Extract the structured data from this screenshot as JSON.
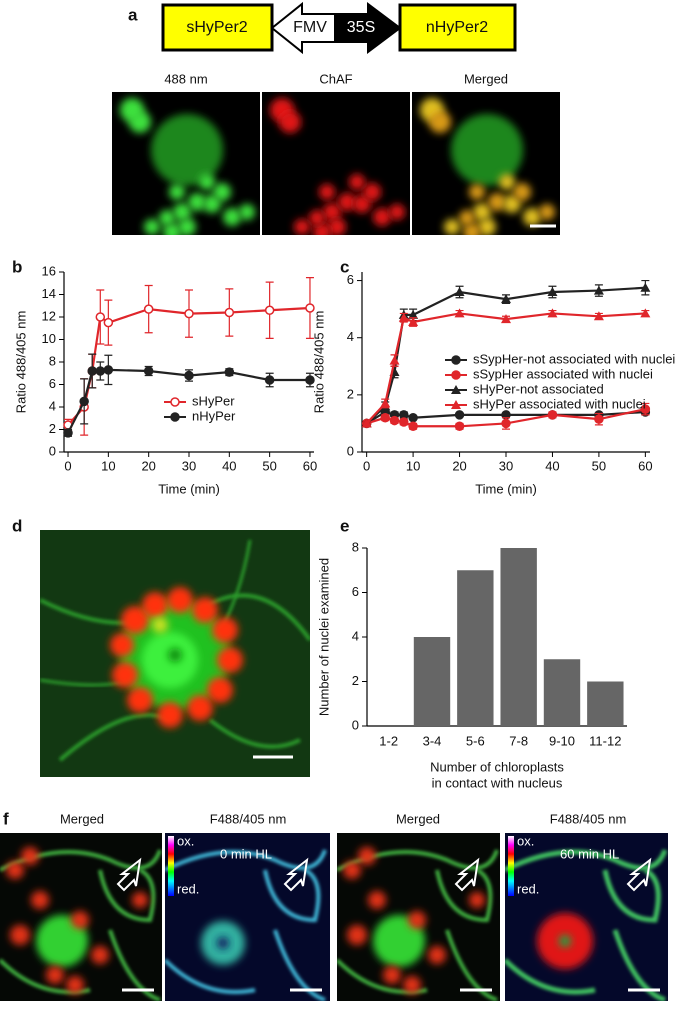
{
  "panel_labels": [
    "a",
    "b",
    "c",
    "d",
    "e",
    "f"
  ],
  "construct": [
    "sHyPer2",
    "FMV",
    "35S",
    "nHyPer2"
  ],
  "panel_a_labels": [
    "488 nm",
    "ChAF",
    "Merged"
  ],
  "panel_f": {
    "labels": [
      "Merged",
      "F488/405 nm",
      "Merged",
      "F488/405 nm"
    ],
    "times": [
      "0 min HL",
      "60 min HL"
    ],
    "colorbar": [
      "ox.",
      "red."
    ]
  },
  "chart_data": [
    {
      "type": "line",
      "ylabel": "Ratio 488/405 nm",
      "xlabel": "Time (min)",
      "x": [
        0,
        4,
        6,
        8,
        10,
        20,
        30,
        40,
        50,
        60
      ],
      "series": [
        {
          "name": "sHyPer",
          "color": "#e0262b",
          "marker": "circle-open",
          "values": [
            2.4,
            4.0,
            7.2,
            12.0,
            11.5,
            12.7,
            12.3,
            12.4,
            12.6,
            12.8
          ],
          "errors": [
            0.5,
            2.5,
            1.5,
            2.4,
            2.0,
            2.1,
            2.1,
            2.1,
            2.5,
            2.7
          ]
        },
        {
          "name": "nHyPer",
          "color": "#222222",
          "marker": "circle",
          "values": [
            1.7,
            4.5,
            7.2,
            7.2,
            7.3,
            7.2,
            6.8,
            7.1,
            6.4,
            6.4
          ],
          "errors": [
            0.3,
            2.0,
            1.5,
            0.8,
            1.3,
            0.4,
            0.5,
            0.3,
            0.6,
            0.6
          ]
        }
      ],
      "xlim": [
        -1,
        61
      ],
      "ylim": [
        0,
        16
      ],
      "xticks": [
        0,
        10,
        20,
        30,
        40,
        50,
        60
      ],
      "yticks": [
        0,
        2,
        4,
        6,
        8,
        10,
        12,
        14,
        16
      ],
      "legend": "lower right"
    },
    {
      "type": "line",
      "ylabel": "Ratio 488/405 nm",
      "xlabel": "Time (min)",
      "x": [
        0,
        4,
        6,
        8,
        10,
        20,
        30,
        40,
        50,
        60
      ],
      "series": [
        {
          "name": "sSypHer-not associated with nuclei",
          "color": "#222222",
          "marker": "circle",
          "values": [
            1.0,
            1.4,
            1.3,
            1.3,
            1.2,
            1.3,
            1.3,
            1.3,
            1.3,
            1.4
          ],
          "errors": [
            0.05,
            0.1,
            0.1,
            0.1,
            0.05,
            0.05,
            0.05,
            0.05,
            0.05,
            0.1
          ]
        },
        {
          "name": "sSypHer associated with nuclei",
          "color": "#e0262b",
          "marker": "circle",
          "values": [
            1.0,
            1.2,
            1.1,
            1.05,
            0.9,
            0.9,
            1.0,
            1.3,
            1.15,
            1.5
          ],
          "errors": [
            0.05,
            0.1,
            0.1,
            0.1,
            0.1,
            0.1,
            0.2,
            0.1,
            0.2,
            0.2
          ]
        },
        {
          "name": "sHyPer-not associated",
          "color": "#222222",
          "marker": "triangle",
          "values": [
            1.0,
            1.6,
            2.8,
            4.8,
            4.8,
            5.6,
            5.35,
            5.6,
            5.65,
            5.75
          ],
          "errors": [
            0.05,
            0.15,
            0.2,
            0.2,
            0.2,
            0.2,
            0.15,
            0.2,
            0.2,
            0.25
          ]
        },
        {
          "name": "sHyPer associated with nuclei",
          "color": "#e0262b",
          "marker": "triangle",
          "values": [
            1.0,
            1.7,
            3.2,
            4.7,
            4.55,
            4.85,
            4.65,
            4.85,
            4.75,
            4.85
          ],
          "errors": [
            0.05,
            0.15,
            0.2,
            0.15,
            0.15,
            0.1,
            0.1,
            0.1,
            0.1,
            0.1
          ]
        }
      ],
      "xlim": [
        -1,
        61
      ],
      "ylim": [
        0,
        6.3
      ],
      "xticks": [
        0,
        10,
        20,
        30,
        40,
        50,
        60
      ],
      "yticks": [
        0,
        2,
        4,
        6
      ],
      "legend": "center right"
    },
    {
      "type": "bar",
      "ylabel": "Number of nuclei examined",
      "xlabel": [
        "Number of chloroplasts",
        "in contact with nucleus"
      ],
      "categories": [
        "1-2",
        "3-4",
        "5-6",
        "7-8",
        "9-10",
        "11-12"
      ],
      "values": [
        0,
        4,
        7,
        8,
        3,
        2
      ],
      "color": "#666666",
      "ylim": [
        0,
        8
      ],
      "yticks": [
        0,
        2,
        4,
        6,
        8
      ]
    }
  ]
}
